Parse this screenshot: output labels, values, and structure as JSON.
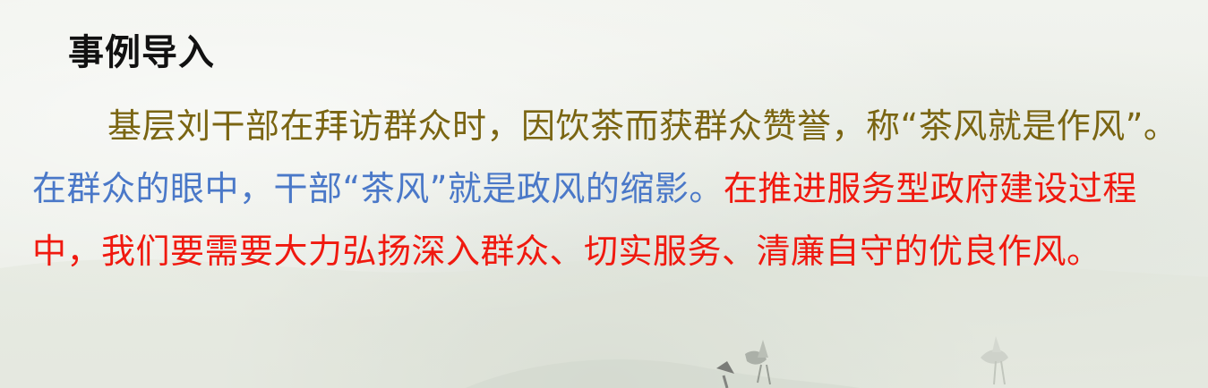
{
  "section": {
    "title": "事例导入"
  },
  "paragraph": {
    "intro": "基层刘干部在拜访群众时，因饮茶而获群众赞誉，称“茶风就是作风”。",
    "view": "在群众的眼中，干部“茶风”就是政风的缩影。",
    "call": "在推进服务型政府建设过程中，我们要需要大力弘扬深入群众、切实服务、清廉自守的优良作风。"
  },
  "colors": {
    "background": "#eef1ea",
    "title": "#111111",
    "intro": "#7a6512",
    "view": "#4a78c8",
    "call": "#f0190f"
  }
}
